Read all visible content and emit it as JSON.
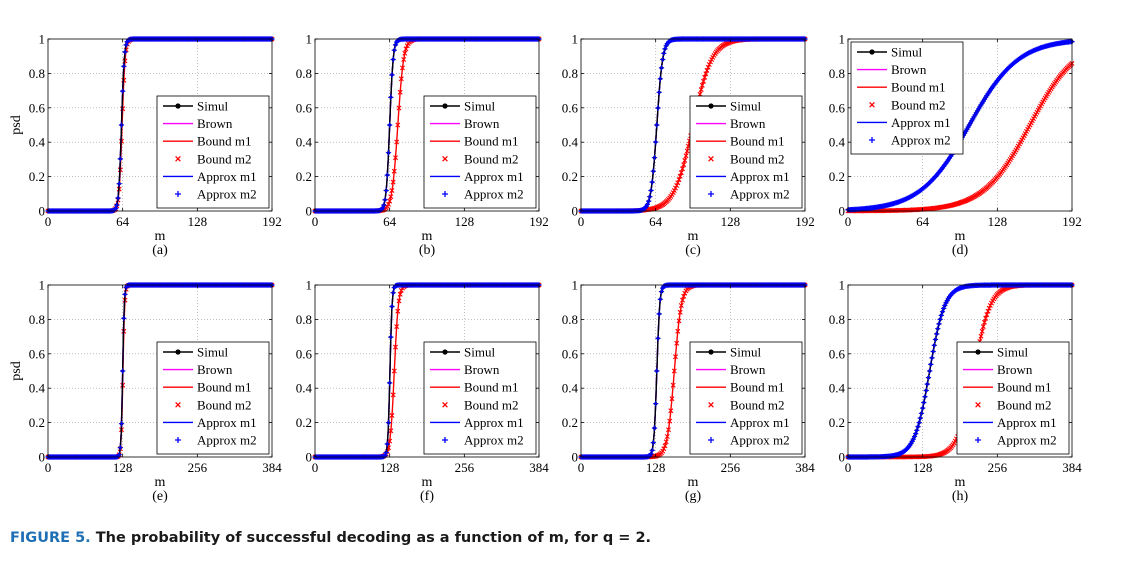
{
  "caption": {
    "label": "FIGURE 5.",
    "text": "The probability of successful decoding as a function of m, for q = 2."
  },
  "colors": {
    "simul": "#000000",
    "brown": "#ff00ff",
    "bound_m1": "#ff0000",
    "bound_m2": "#ff0000",
    "approx_m1": "#0000ff",
    "approx_m2": "#0000ff"
  },
  "chart_data": [
    {
      "type": "line",
      "panel_label": "(a)",
      "xlabel": "m",
      "ylabel": "psd",
      "xlim": [
        0,
        192
      ],
      "xticks": [
        "0",
        "64",
        "128",
        "192"
      ],
      "ylim": [
        0,
        1
      ],
      "yticks": [
        "0",
        "0.2",
        "0.4",
        "0.6",
        "0.8",
        "1"
      ],
      "grid": true,
      "legend": "center-right",
      "series": [
        {
          "name": "Simul",
          "style": "line-dot",
          "center": 63,
          "width": 1.2
        },
        {
          "name": "Brown",
          "style": "line",
          "center": 63,
          "width": 1.2
        },
        {
          "name": "Bound m1",
          "style": "line",
          "center": 63.5,
          "width": 1.3
        },
        {
          "name": "Bound m2",
          "style": "x",
          "center": 63.5,
          "width": 1.3
        },
        {
          "name": "Approx m1",
          "style": "line",
          "center": 63,
          "width": 1.2
        },
        {
          "name": "Approx m2",
          "style": "plus",
          "center": 63,
          "width": 1.2
        }
      ]
    },
    {
      "type": "line",
      "panel_label": "(b)",
      "xlabel": "m",
      "ylabel": "",
      "xlim": [
        0,
        192
      ],
      "xticks": [
        "0",
        "64",
        "128",
        "192"
      ],
      "ylim": [
        0,
        1
      ],
      "yticks": [
        "0",
        "0.2",
        "0.4",
        "0.6",
        "0.8",
        "1"
      ],
      "grid": true,
      "legend": "center-right",
      "series": [
        {
          "name": "Simul",
          "style": "line-dot",
          "center": 64,
          "width": 1.5
        },
        {
          "name": "Brown",
          "style": "line",
          "center": 64,
          "width": 1.5
        },
        {
          "name": "Bound m1",
          "style": "line",
          "center": 71,
          "width": 2.5
        },
        {
          "name": "Bound m2",
          "style": "x",
          "center": 71,
          "width": 2.5
        },
        {
          "name": "Approx m1",
          "style": "line",
          "center": 64,
          "width": 1.5
        },
        {
          "name": "Approx m2",
          "style": "plus",
          "center": 64,
          "width": 1.5
        }
      ]
    },
    {
      "type": "line",
      "panel_label": "(c)",
      "xlabel": "m",
      "ylabel": "",
      "xlim": [
        0,
        192
      ],
      "xticks": [
        "0",
        "64",
        "128",
        "192"
      ],
      "ylim": [
        0,
        1
      ],
      "yticks": [
        "0",
        "0.2",
        "0.4",
        "0.6",
        "0.8",
        "1"
      ],
      "grid": true,
      "legend": "center-right",
      "series": [
        {
          "name": "Simul",
          "style": "line-dot",
          "center": 65,
          "width": 2.5
        },
        {
          "name": "Brown",
          "style": "line",
          "center": 65,
          "width": 2.5
        },
        {
          "name": "Bound m1",
          "style": "line",
          "center": 96,
          "width": 8
        },
        {
          "name": "Bound m2",
          "style": "x",
          "center": 96,
          "width": 8
        },
        {
          "name": "Approx m1",
          "style": "line",
          "center": 65,
          "width": 2.5
        },
        {
          "name": "Approx m2",
          "style": "plus",
          "center": 65,
          "width": 2.5
        }
      ]
    },
    {
      "type": "line",
      "panel_label": "(d)",
      "xlabel": "m",
      "ylabel": "",
      "xlim": [
        0,
        192
      ],
      "xticks": [
        "0",
        "64",
        "128",
        "192"
      ],
      "ylim": [
        0,
        1
      ],
      "yticks": [
        "0",
        "0.2",
        "0.4",
        "0.6",
        "0.8",
        "1"
      ],
      "grid": true,
      "legend": "top-left",
      "series": [
        {
          "name": "Simul",
          "style": "line-dot",
          "center": 104,
          "width": 21
        },
        {
          "name": "Brown",
          "style": "line",
          "center": 104,
          "width": 21
        },
        {
          "name": "Bound m1",
          "style": "line",
          "center": 156,
          "width": 20
        },
        {
          "name": "Bound m2",
          "style": "x",
          "center": 156,
          "width": 20
        },
        {
          "name": "Approx m1",
          "style": "line",
          "center": 104,
          "width": 21
        },
        {
          "name": "Approx m2",
          "style": "plus",
          "center": 104,
          "width": 21
        }
      ]
    },
    {
      "type": "line",
      "panel_label": "(e)",
      "xlabel": "m",
      "ylabel": "psd",
      "xlim": [
        0,
        384
      ],
      "xticks": [
        "0",
        "128",
        "256",
        "384"
      ],
      "ylim": [
        0,
        1
      ],
      "yticks": [
        "0",
        "0.2",
        "0.4",
        "0.6",
        "0.8",
        "1"
      ],
      "grid": true,
      "legend": "center-right",
      "series": [
        {
          "name": "Simul",
          "style": "line-dot",
          "center": 128,
          "width": 1.4
        },
        {
          "name": "Brown",
          "style": "line",
          "center": 128,
          "width": 1.4
        },
        {
          "name": "Bound m1",
          "style": "line",
          "center": 128.5,
          "width": 1.5
        },
        {
          "name": "Bound m2",
          "style": "x",
          "center": 128.5,
          "width": 1.5
        },
        {
          "name": "Approx m1",
          "style": "line",
          "center": 128,
          "width": 1.4
        },
        {
          "name": "Approx m2",
          "style": "plus",
          "center": 128,
          "width": 1.4
        }
      ]
    },
    {
      "type": "line",
      "panel_label": "(f)",
      "xlabel": "m",
      "ylabel": "",
      "xlim": [
        0,
        384
      ],
      "xticks": [
        "0",
        "128",
        "256",
        "384"
      ],
      "ylim": [
        0,
        1
      ],
      "yticks": [
        "0",
        "0.2",
        "0.4",
        "0.6",
        "0.8",
        "1"
      ],
      "grid": true,
      "legend": "center-right",
      "series": [
        {
          "name": "Simul",
          "style": "line-dot",
          "center": 128.5,
          "width": 1.8
        },
        {
          "name": "Brown",
          "style": "line",
          "center": 128.5,
          "width": 1.8
        },
        {
          "name": "Bound m1",
          "style": "line",
          "center": 136,
          "width": 3.5
        },
        {
          "name": "Bound m2",
          "style": "x",
          "center": 136,
          "width": 3.5
        },
        {
          "name": "Approx m1",
          "style": "line",
          "center": 128.5,
          "width": 1.8
        },
        {
          "name": "Approx m2",
          "style": "plus",
          "center": 128.5,
          "width": 1.8
        }
      ]
    },
    {
      "type": "line",
      "panel_label": "(g)",
      "xlabel": "m",
      "ylabel": "",
      "xlim": [
        0,
        384
      ],
      "xticks": [
        "0",
        "128",
        "256",
        "384"
      ],
      "ylim": [
        0,
        1
      ],
      "yticks": [
        "0",
        "0.2",
        "0.4",
        "0.6",
        "0.8",
        "1"
      ],
      "grid": true,
      "legend": "center-right",
      "series": [
        {
          "name": "Simul",
          "style": "line-dot",
          "center": 130,
          "width": 2.5
        },
        {
          "name": "Brown",
          "style": "line",
          "center": 130,
          "width": 2.5
        },
        {
          "name": "Bound m1",
          "style": "line",
          "center": 160,
          "width": 6
        },
        {
          "name": "Bound m2",
          "style": "x",
          "center": 160,
          "width": 6
        },
        {
          "name": "Approx m1",
          "style": "line",
          "center": 130,
          "width": 2.5
        },
        {
          "name": "Approx m2",
          "style": "plus",
          "center": 130,
          "width": 2.5
        }
      ]
    },
    {
      "type": "line",
      "panel_label": "(h)",
      "xlabel": "m",
      "ylabel": "",
      "xlim": [
        0,
        384
      ],
      "xticks": [
        "0",
        "128",
        "256",
        "384"
      ],
      "ylim": [
        0,
        1
      ],
      "yticks": [
        "0",
        "0.2",
        "0.4",
        "0.6",
        "0.8",
        "1"
      ],
      "grid": true,
      "legend": "center-right",
      "series": [
        {
          "name": "Simul",
          "style": "line-dot",
          "center": 140,
          "width": 13
        },
        {
          "name": "Brown",
          "style": "line",
          "center": 140,
          "width": 13
        },
        {
          "name": "Bound m1",
          "style": "line",
          "center": 216,
          "width": 14
        },
        {
          "name": "Bound m2",
          "style": "x",
          "center": 216,
          "width": 14
        },
        {
          "name": "Approx m1",
          "style": "line",
          "center": 140,
          "width": 13
        },
        {
          "name": "Approx m2",
          "style": "plus",
          "center": 140,
          "width": 13
        }
      ]
    }
  ]
}
